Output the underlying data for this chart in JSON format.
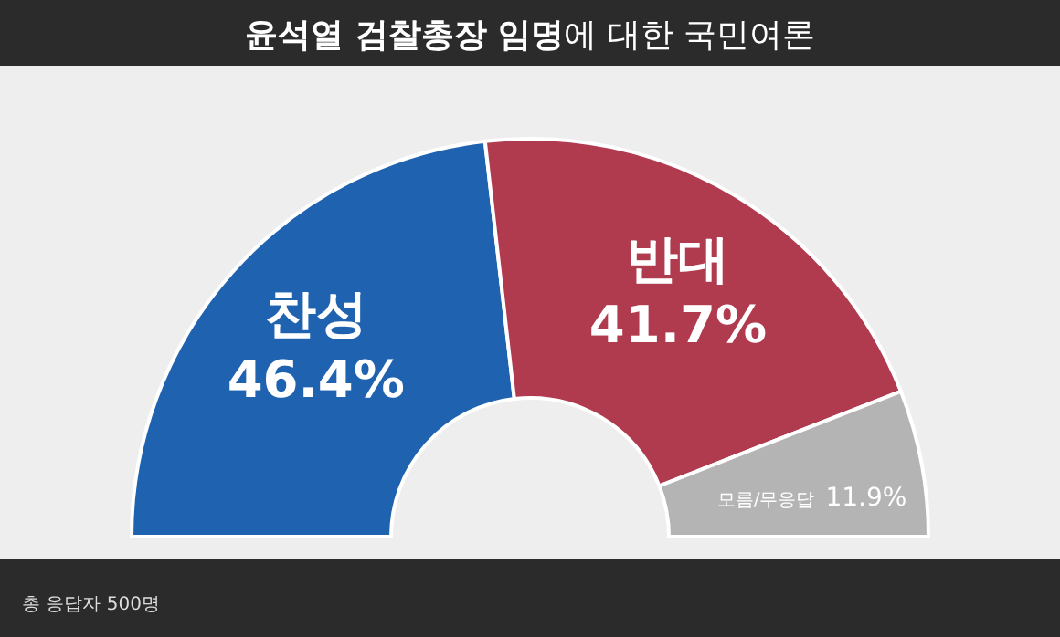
{
  "chart_data": {
    "type": "donut",
    "title": "**윤석열 검찰총장 임명**에 대한 국민여론",
    "categories": [
      "찬성",
      "반대",
      "모름/무응답"
    ],
    "values": [
      46.4,
      41.7,
      11.9
    ],
    "colors": [
      "#1f63b0",
      "#b03a4e",
      "#b4b4b4"
    ],
    "value_labels": [
      "46.4%",
      "41.7%",
      "11.9%"
    ],
    "annotations": [
      "총 응답자 500명"
    ]
  }
}
